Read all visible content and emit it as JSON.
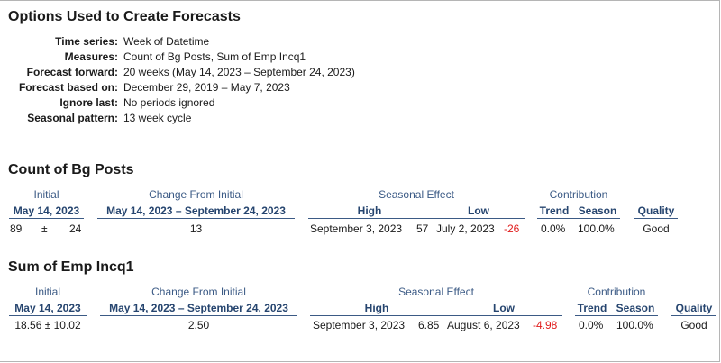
{
  "title": "Options Used to Create Forecasts",
  "options": [
    {
      "label": "Time series:",
      "value": "Week of Datetime"
    },
    {
      "label": "Measures:",
      "value": "Count of Bg Posts, Sum of Emp Incq1"
    },
    {
      "label": "Forecast forward:",
      "value": "20 weeks (May 14, 2023 – September 24, 2023)"
    },
    {
      "label": "Forecast based on:",
      "value": "December 29, 2019 – May 7, 2023"
    },
    {
      "label": "Ignore last:",
      "value": "No periods ignored"
    },
    {
      "label": "Seasonal pattern:",
      "value": "13 week cycle"
    }
  ],
  "headers": {
    "initial": "Initial",
    "change_from_initial": "Change From Initial",
    "seasonal_effect": "Seasonal Effect",
    "contribution": "Contribution",
    "high": "High",
    "low": "Low",
    "trend": "Trend",
    "season": "Season",
    "quality": "Quality"
  },
  "measures": [
    {
      "name": "Count of Bg Posts",
      "initial_date": "May 14, 2023",
      "change_range": "May 14, 2023 – September 24, 2023",
      "initial_value": "89",
      "pm": "±",
      "initial_error": "24",
      "change": "13",
      "high_date": "September 3, 2023",
      "high_value": "57",
      "low_date": "July 2, 2023",
      "low_value": "-26",
      "trend": "0.0%",
      "season": "100.0%",
      "quality": "Good"
    },
    {
      "name": "Sum of Emp Incq1",
      "initial_date": "May 14, 2023",
      "change_range": "May 14, 2023 – September 24, 2023",
      "initial_combined": "18.56 ± 10.02",
      "change": "2.50",
      "high_date": "September 3, 2023",
      "high_value": "6.85",
      "low_date": "August 6, 2023",
      "low_value": "-4.98",
      "trend": "0.0%",
      "season": "100.0%",
      "quality": "Good"
    }
  ],
  "colors": {
    "header": "#3b5a85",
    "negative": "#e01b1b"
  }
}
